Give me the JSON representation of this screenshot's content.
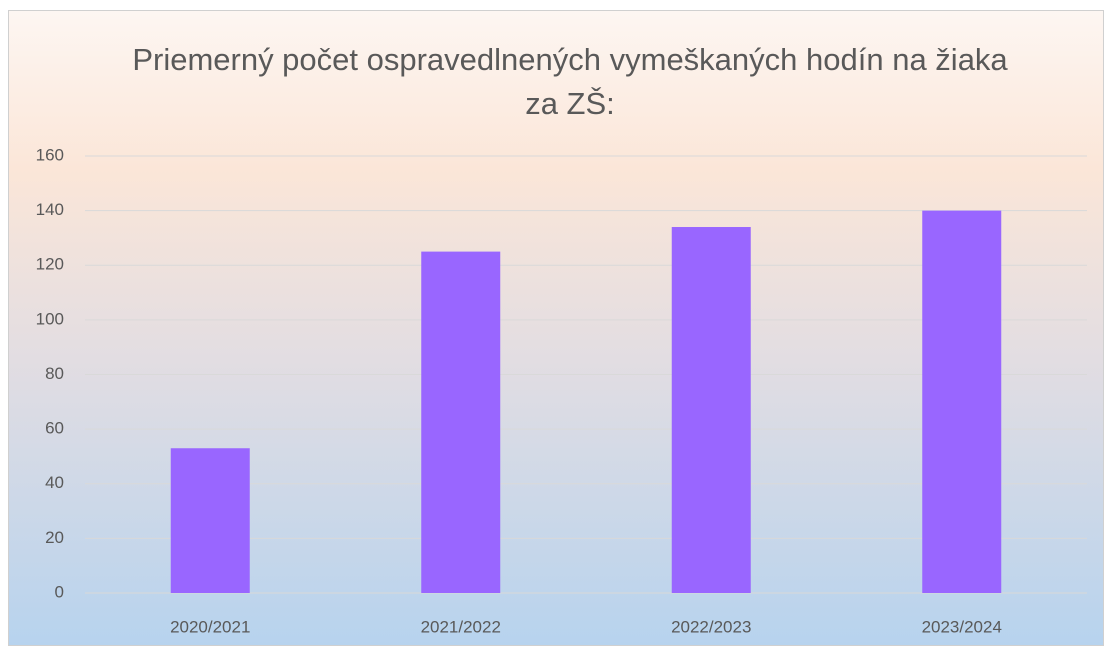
{
  "chart_data": {
    "type": "bar",
    "title": "Priemerný počet ospravedlnených vymeškaných hodín na žiaka za ZŠ:",
    "categories": [
      "2020/2021",
      "2021/2022",
      "2022/2023",
      "2023/2024"
    ],
    "values": [
      53,
      125,
      134,
      140
    ],
    "color": "#9966ff",
    "ylim": [
      0,
      160
    ],
    "yticks": [
      0,
      20,
      40,
      60,
      80,
      100,
      120,
      140,
      160
    ],
    "grid": true
  }
}
